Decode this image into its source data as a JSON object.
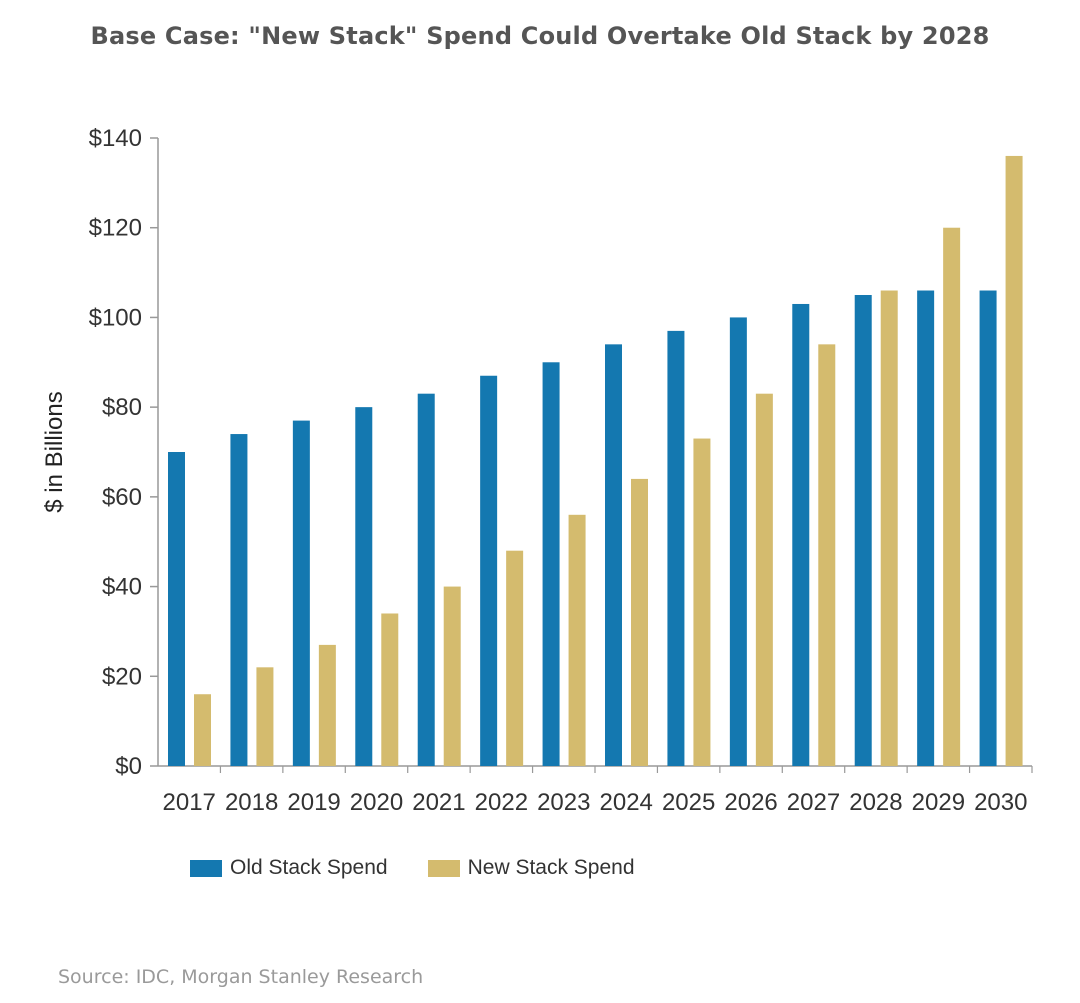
{
  "page": {
    "title": "Base Case: \"New Stack\" Spend Could Overtake Old Stack by 2028",
    "source": "Source: IDC, Morgan Stanley Research"
  },
  "colors": {
    "old_stack": "#1478b0",
    "new_stack": "#d4bb6e",
    "axis": "#999999",
    "tick_text": "#333333"
  },
  "chart_data": {
    "type": "bar",
    "title": "Base Case: \"New Stack\" Spend Could Overtake Old Stack by 2028",
    "xlabel": "",
    "ylabel": "$ in Billions",
    "ylim": [
      0,
      140
    ],
    "yticks": [
      0,
      20,
      40,
      60,
      80,
      100,
      120,
      140
    ],
    "ytick_labels": [
      "$0",
      "$20",
      "$40",
      "$60",
      "$80",
      "$100",
      "$120",
      "$140"
    ],
    "grid": false,
    "legend_position": "bottom-left",
    "categories": [
      "2017",
      "2018",
      "2019",
      "2020",
      "2021",
      "2022",
      "2023",
      "2024",
      "2025",
      "2026",
      "2027",
      "2028",
      "2029",
      "2030"
    ],
    "series": [
      {
        "name": "Old Stack Spend",
        "values": [
          70,
          74,
          77,
          80,
          83,
          87,
          90,
          94,
          97,
          100,
          103,
          105,
          106,
          106
        ]
      },
      {
        "name": "New Stack Spend",
        "values": [
          16,
          22,
          27,
          34,
          40,
          48,
          56,
          64,
          73,
          83,
          94,
          106,
          120,
          136
        ]
      }
    ]
  }
}
